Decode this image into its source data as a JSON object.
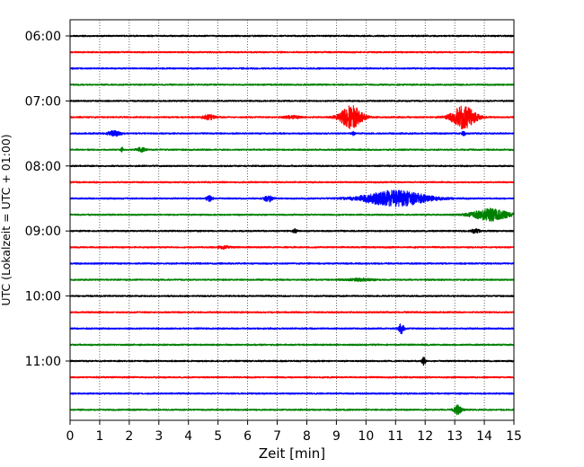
{
  "chart_data": {
    "type": "line",
    "title": "",
    "xlabel": "Zeit  [min]",
    "ylabel": "UTC (Lokalzeit = UTC + 01:00)",
    "xlim": [
      0,
      15
    ],
    "x_ticks": [
      0,
      1,
      2,
      3,
      4,
      5,
      6,
      7,
      8,
      9,
      10,
      11,
      12,
      13,
      14,
      15
    ],
    "x_tick_labels": [
      "0",
      "1",
      "2",
      "3",
      "4",
      "5",
      "6",
      "7",
      "8",
      "9",
      "10",
      "11",
      "12",
      "13",
      "14",
      "15"
    ],
    "y_tick_labels": [
      "06:00",
      "07:00",
      "08:00",
      "09:00",
      "10:00",
      "11:00"
    ],
    "trace_interval_min": 15,
    "start_time": "06:00",
    "grid": "vertical dotted at each minute",
    "colors": [
      "#000000",
      "#ff0000",
      "#0000ff",
      "#008000"
    ],
    "traces": [
      {
        "time": "06:00",
        "color": "#000000",
        "events": []
      },
      {
        "time": "06:15",
        "color": "#ff0000",
        "events": []
      },
      {
        "time": "06:30",
        "color": "#0000ff",
        "events": []
      },
      {
        "time": "06:45",
        "color": "#008000",
        "events": []
      },
      {
        "time": "07:00",
        "color": "#000000",
        "events": []
      },
      {
        "time": "07:15",
        "color": "#ff0000",
        "events": [
          {
            "t": 4.7,
            "amp": 0.25,
            "width": 0.3
          },
          {
            "t": 7.5,
            "amp": 0.15,
            "width": 0.4
          },
          {
            "t": 9.5,
            "amp": 1.25,
            "width": 0.55
          },
          {
            "t": 13.3,
            "amp": 1.25,
            "width": 0.6
          }
        ]
      },
      {
        "time": "07:30",
        "color": "#0000ff",
        "events": [
          {
            "t": 1.5,
            "amp": 0.3,
            "width": 0.3
          },
          {
            "t": 9.55,
            "amp": 0.2,
            "width": 0.1
          },
          {
            "t": 13.3,
            "amp": 0.2,
            "width": 0.1
          }
        ]
      },
      {
        "time": "07:45",
        "color": "#008000",
        "events": [
          {
            "t": 1.75,
            "amp": 0.4,
            "width": 0.05
          },
          {
            "t": 2.4,
            "amp": 0.25,
            "width": 0.2
          }
        ]
      },
      {
        "time": "08:00",
        "color": "#000000",
        "events": []
      },
      {
        "time": "08:15",
        "color": "#ff0000",
        "events": []
      },
      {
        "time": "08:30",
        "color": "#0000ff",
        "events": [
          {
            "t": 4.7,
            "amp": 0.3,
            "width": 0.15
          },
          {
            "t": 6.7,
            "amp": 0.35,
            "width": 0.2
          },
          {
            "t": 11.0,
            "amp": 0.85,
            "width": 1.6
          }
        ]
      },
      {
        "time": "08:45",
        "color": "#008000",
        "events": [
          {
            "t": 14.2,
            "amp": 0.65,
            "width": 0.9
          }
        ]
      },
      {
        "time": "09:00",
        "color": "#000000",
        "events": [
          {
            "t": 7.6,
            "amp": 0.2,
            "width": 0.1
          },
          {
            "t": 13.7,
            "amp": 0.25,
            "width": 0.2
          }
        ]
      },
      {
        "time": "09:15",
        "color": "#ff0000",
        "events": [
          {
            "t": 5.2,
            "amp": 0.15,
            "width": 0.3
          }
        ]
      },
      {
        "time": "09:30",
        "color": "#0000ff",
        "events": []
      },
      {
        "time": "09:45",
        "color": "#008000",
        "events": [
          {
            "t": 9.8,
            "amp": 0.12,
            "width": 0.7
          }
        ]
      },
      {
        "time": "10:00",
        "color": "#000000",
        "events": []
      },
      {
        "time": "10:15",
        "color": "#ff0000",
        "events": []
      },
      {
        "time": "10:30",
        "color": "#0000ff",
        "events": [
          {
            "t": 11.2,
            "amp": 0.55,
            "width": 0.15
          }
        ]
      },
      {
        "time": "10:45",
        "color": "#008000",
        "events": []
      },
      {
        "time": "11:00",
        "color": "#000000",
        "events": [
          {
            "t": 11.95,
            "amp": 0.45,
            "width": 0.08
          }
        ]
      },
      {
        "time": "11:15",
        "color": "#ff0000",
        "events": []
      },
      {
        "time": "11:30",
        "color": "#0000ff",
        "events": []
      },
      {
        "time": "11:45",
        "color": "#008000",
        "events": [
          {
            "t": 13.1,
            "amp": 0.5,
            "width": 0.2
          }
        ]
      }
    ]
  }
}
